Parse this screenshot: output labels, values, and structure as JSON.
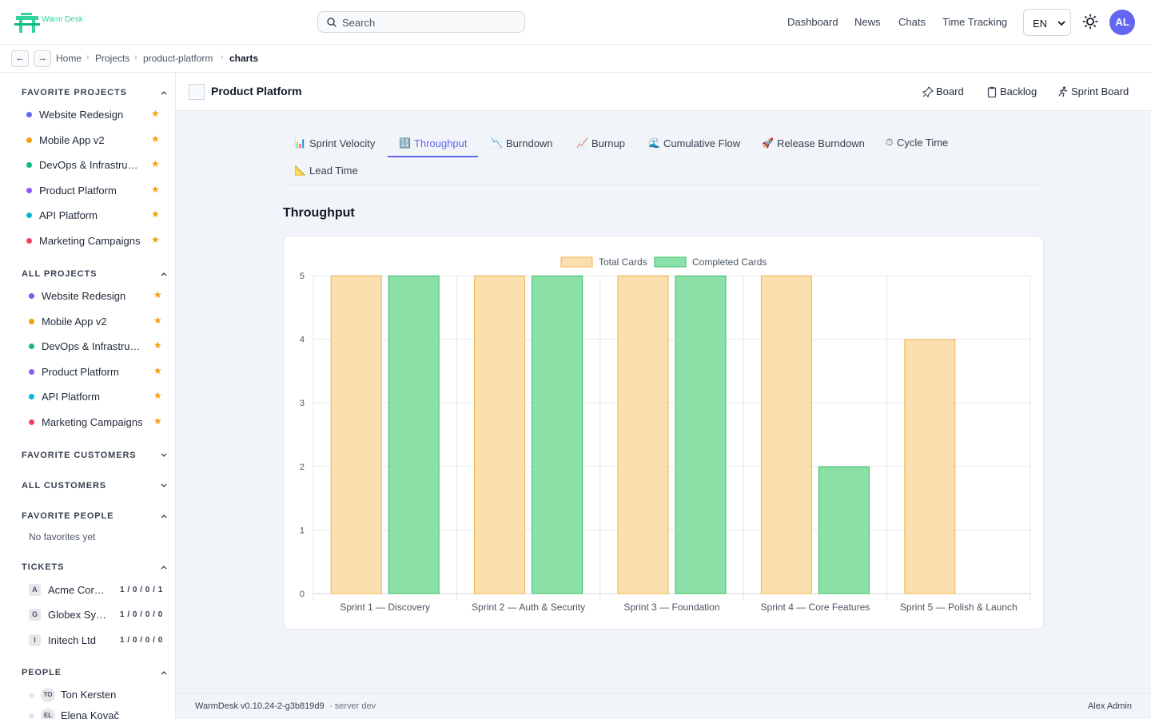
{
  "app": {
    "logo_text": "Warm Desk"
  },
  "header": {
    "search_placeholder": "Search",
    "nav": [
      "Dashboard",
      "News",
      "Chats",
      "Time Tracking"
    ],
    "language": "EN",
    "avatar_initials": "AL"
  },
  "breadcrumb": {
    "back": "←",
    "forward": "→",
    "items": [
      "Home",
      "Projects",
      "product-platform",
      "charts"
    ]
  },
  "sidebar": {
    "favorite_projects": {
      "title": "FAVORITE PROJECTS",
      "items": [
        {
          "label": "Website Redesign",
          "color": "#6366f1"
        },
        {
          "label": "Mobile App v2",
          "color": "#f59e0b"
        },
        {
          "label": "DevOps & Infrastructure",
          "color": "#10b981"
        },
        {
          "label": "Product Platform",
          "color": "#8b5cf6"
        },
        {
          "label": "API Platform",
          "color": "#06b6d4"
        },
        {
          "label": "Marketing Campaigns",
          "color": "#f43f5e"
        }
      ]
    },
    "all_projects": {
      "title": "ALL PROJECTS",
      "items": [
        {
          "label": "Website Redesign",
          "color": "#6366f1"
        },
        {
          "label": "Mobile App v2",
          "color": "#f59e0b"
        },
        {
          "label": "DevOps & Infrastructure",
          "color": "#10b981"
        },
        {
          "label": "Product Platform",
          "color": "#8b5cf6"
        },
        {
          "label": "API Platform",
          "color": "#06b6d4"
        },
        {
          "label": "Marketing Campaigns",
          "color": "#f43f5e"
        }
      ]
    },
    "favorite_customers": {
      "title": "FAVORITE CUSTOMERS"
    },
    "all_customers": {
      "title": "ALL CUSTOMERS"
    },
    "favorite_people": {
      "title": "FAVORITE PEOPLE",
      "empty": "No favorites yet"
    },
    "tickets": {
      "title": "TICKETS",
      "items": [
        {
          "badge": "A",
          "label": "Acme Corporation",
          "counts": "1 / 0 / 0 / 1"
        },
        {
          "badge": "G",
          "label": "Globex Systems",
          "counts": "1 / 0 / 0 / 0"
        },
        {
          "badge": "I",
          "label": "Initech Ltd",
          "counts": "1 / 0 / 0 / 0"
        }
      ]
    },
    "people": {
      "title": "PEOPLE",
      "items": [
        {
          "initials": "TO",
          "label": "Ton Kersten"
        },
        {
          "initials": "EL",
          "label": "Elena Kovač"
        }
      ]
    }
  },
  "project": {
    "title": "Product Platform",
    "actions": [
      "Board",
      "Backlog",
      "Sprint Board"
    ]
  },
  "tabs": [
    {
      "icon": "📊",
      "label": "Sprint Velocity"
    },
    {
      "icon": "🔢",
      "label": "Throughput"
    },
    {
      "icon": "📉",
      "label": "Burndown"
    },
    {
      "icon": "📈",
      "label": "Burnup"
    },
    {
      "icon": "🌊",
      "label": "Cumulative Flow"
    },
    {
      "icon": "🚀",
      "label": "Release Burndown"
    },
    {
      "icon": "⏱",
      "label": "Cycle Time"
    },
    {
      "icon": "📐",
      "label": "Lead Time"
    }
  ],
  "active_tab": "Throughput",
  "section_title": "Throughput",
  "chart_data": {
    "type": "bar",
    "categories": [
      "Sprint 1 — Discovery",
      "Sprint 2 — Auth & Security",
      "Sprint 3 — Foundation",
      "Sprint 4 — Core Features",
      "Sprint 5 — Polish & Launch"
    ],
    "series": [
      {
        "name": "Total Cards",
        "values": [
          5,
          5,
          5,
          5,
          4
        ],
        "fill": "#fbdfae",
        "stroke": "#f0b34b"
      },
      {
        "name": "Completed Cards",
        "values": [
          5,
          5,
          5,
          2,
          0
        ],
        "fill": "#8ae0a6",
        "stroke": "#3bbf68"
      }
    ],
    "ylim": [
      0,
      5
    ],
    "yticks": [
      "0",
      "1",
      "2",
      "3",
      "4",
      "5"
    ],
    "grid": true,
    "legend": "top-center"
  },
  "footer": {
    "version": "WarmDesk v0.10.24-2-g3b819d9",
    "server": "· server dev",
    "user": "Alex Admin"
  }
}
